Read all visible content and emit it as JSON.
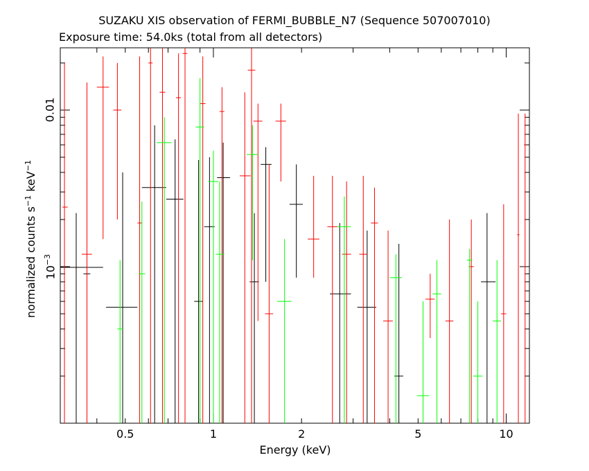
{
  "chart_data": {
    "type": "scatter",
    "title": "SUZAKU XIS observation of FERMI_BUBBLE_N7 (Sequence 507007010)",
    "subtitle": "Exposure time: 54.0ks (total from all detectors)",
    "xlabel": "Energy (keV)",
    "ylabel_main": "normalized counts s",
    "ylabel_exp1": "−1",
    "ylabel_mid": " keV",
    "ylabel_exp2": "−1",
    "x_scale": "log",
    "y_scale": "log",
    "xlim": [
      0.3,
      12.0
    ],
    "ylim": [
      0.0001,
      0.025
    ],
    "grid": false,
    "x_tick_labels": [
      {
        "value": 0.5,
        "label": "0.5"
      },
      {
        "value": 1,
        "label": "1"
      },
      {
        "value": 2,
        "label": "2"
      },
      {
        "value": 5,
        "label": "5"
      },
      {
        "value": 10,
        "label": "10"
      }
    ],
    "y_tick_labels": [
      {
        "value": 0.001,
        "base": "10",
        "exp": "−3"
      },
      {
        "value": 0.01,
        "base": "0.01",
        "exp": ""
      }
    ],
    "series": [
      {
        "color": "#000000",
        "points": [
          {
            "x": 0.34,
            "xlo": 0.3,
            "xhi": 0.42,
            "y": 0.00099,
            "ylo": 0.0001,
            "yhi": 0.0022
          },
          {
            "x": 0.37,
            "xlo": 0.36,
            "xhi": 0.38,
            "y": 0.0009,
            "ylo": 0.0001,
            "yhi": 0.0035
          },
          {
            "x": 0.49,
            "xlo": 0.43,
            "xhi": 0.55,
            "y": 0.00055,
            "ylo": 0.0001,
            "yhi": 0.004
          },
          {
            "x": 0.63,
            "xlo": 0.57,
            "xhi": 0.69,
            "y": 0.0032,
            "ylo": 0.0001,
            "yhi": 0.008
          },
          {
            "x": 0.74,
            "xlo": 0.69,
            "xhi": 0.79,
            "y": 0.0027,
            "ylo": 0.0001,
            "yhi": 0.0065
          },
          {
            "x": 0.89,
            "xlo": 0.86,
            "xhi": 0.92,
            "y": 0.0006,
            "ylo": 0.0001,
            "yhi": 0.0048
          },
          {
            "x": 0.97,
            "xlo": 0.93,
            "xhi": 1.01,
            "y": 0.0018,
            "ylo": 0.0001,
            "yhi": 0.005
          },
          {
            "x": 1.08,
            "xlo": 1.03,
            "xhi": 1.14,
            "y": 0.0037,
            "ylo": 0.0001,
            "yhi": 0.0062
          },
          {
            "x": 1.38,
            "xlo": 1.33,
            "xhi": 1.43,
            "y": 0.0008,
            "ylo": 0.0001,
            "yhi": 0.0022
          },
          {
            "x": 1.51,
            "xlo": 1.45,
            "xhi": 1.58,
            "y": 0.0045,
            "ylo": 0.0008,
            "yhi": 0.0058
          },
          {
            "x": 1.92,
            "xlo": 1.82,
            "xhi": 2.02,
            "y": 0.0025,
            "ylo": 0.00085,
            "yhi": 0.0045
          },
          {
            "x": 2.7,
            "xlo": 2.5,
            "xhi": 2.95,
            "y": 0.00067,
            "ylo": 0.0001,
            "yhi": 0.0019
          },
          {
            "x": 3.35,
            "xlo": 3.1,
            "xhi": 3.6,
            "y": 0.00055,
            "ylo": 0.0001,
            "yhi": 0.0017
          },
          {
            "x": 4.3,
            "xlo": 4.15,
            "xhi": 4.45,
            "y": 0.0002,
            "ylo": 0.0001,
            "yhi": 0.0014
          },
          {
            "x": 8.6,
            "xlo": 8.2,
            "xhi": 9.2,
            "y": 0.0008,
            "ylo": 0.0001,
            "yhi": 0.0022
          }
        ]
      },
      {
        "color": "#ff0000",
        "points": [
          {
            "x": 0.31,
            "xlo": 0.305,
            "xhi": 0.318,
            "y": 0.0024,
            "ylo": 0.0001,
            "yhi": 0.02
          },
          {
            "x": 0.37,
            "xlo": 0.355,
            "xhi": 0.385,
            "y": 0.0012,
            "ylo": 0.0001,
            "yhi": 0.015
          },
          {
            "x": 0.42,
            "xlo": 0.4,
            "xhi": 0.44,
            "y": 0.014,
            "ylo": 0.0015,
            "yhi": 0.022
          },
          {
            "x": 0.47,
            "xlo": 0.455,
            "xhi": 0.485,
            "y": 0.01,
            "ylo": 0.002,
            "yhi": 0.02
          },
          {
            "x": 0.56,
            "xlo": 0.55,
            "xhi": 0.57,
            "y": 0.0019,
            "ylo": 0.0001,
            "yhi": 0.022
          },
          {
            "x": 0.61,
            "xlo": 0.6,
            "xhi": 0.62,
            "y": 0.02,
            "ylo": 0.0001,
            "yhi": 0.025
          },
          {
            "x": 0.67,
            "xlo": 0.655,
            "xhi": 0.685,
            "y": 0.013,
            "ylo": 0.0001,
            "yhi": 0.025
          },
          {
            "x": 0.76,
            "xlo": 0.745,
            "xhi": 0.775,
            "y": 0.012,
            "ylo": 0.0001,
            "yhi": 0.023
          },
          {
            "x": 0.8,
            "xlo": 0.785,
            "xhi": 0.815,
            "y": 0.023,
            "ylo": 0.0001,
            "yhi": 0.025
          },
          {
            "x": 0.92,
            "xlo": 0.9,
            "xhi": 0.94,
            "y": 0.011,
            "ylo": 0.0001,
            "yhi": 0.022
          },
          {
            "x": 1.07,
            "xlo": 1.05,
            "xhi": 1.09,
            "y": 0.0098,
            "ylo": 0.0001,
            "yhi": 0.014
          },
          {
            "x": 1.28,
            "xlo": 1.23,
            "xhi": 1.34,
            "y": 0.0038,
            "ylo": 0.0001,
            "yhi": 0.013
          },
          {
            "x": 1.35,
            "xlo": 1.31,
            "xhi": 1.39,
            "y": 0.018,
            "ylo": 0.0001,
            "yhi": 0.025
          },
          {
            "x": 1.42,
            "xlo": 1.37,
            "xhi": 1.47,
            "y": 0.0085,
            "ylo": 0.00045,
            "yhi": 0.011
          },
          {
            "x": 1.55,
            "xlo": 1.5,
            "xhi": 1.6,
            "y": 0.0005,
            "ylo": 0.0001,
            "yhi": 0.0045
          },
          {
            "x": 1.7,
            "xlo": 1.63,
            "xhi": 1.77,
            "y": 0.0085,
            "ylo": 0.0035,
            "yhi": 0.011
          },
          {
            "x": 2.2,
            "xlo": 2.1,
            "xhi": 2.3,
            "y": 0.0015,
            "ylo": 0.00085,
            "yhi": 0.0038
          },
          {
            "x": 2.55,
            "xlo": 2.45,
            "xhi": 2.65,
            "y": 0.0018,
            "ylo": 0.0001,
            "yhi": 0.0038
          },
          {
            "x": 2.85,
            "xlo": 2.75,
            "xhi": 2.95,
            "y": 0.0012,
            "ylo": 0.0001,
            "yhi": 0.0035
          },
          {
            "x": 3.25,
            "xlo": 3.15,
            "xhi": 3.35,
            "y": 0.0012,
            "ylo": 0.0001,
            "yhi": 0.0038
          },
          {
            "x": 3.55,
            "xlo": 3.45,
            "xhi": 3.65,
            "y": 0.0019,
            "ylo": 0.0001,
            "yhi": 0.0032
          },
          {
            "x": 3.95,
            "xlo": 3.8,
            "xhi": 4.1,
            "y": 0.00045,
            "ylo": 0.0001,
            "yhi": 0.0017
          },
          {
            "x": 5.5,
            "xlo": 5.3,
            "xhi": 5.7,
            "y": 0.00062,
            "ylo": 0.00035,
            "yhi": 0.0009
          },
          {
            "x": 6.4,
            "xlo": 6.2,
            "xhi": 6.6,
            "y": 0.00045,
            "ylo": 0.0001,
            "yhi": 0.002
          },
          {
            "x": 7.6,
            "xlo": 7.45,
            "xhi": 7.75,
            "y": 0.001,
            "ylo": 0.0001,
            "yhi": 0.002
          },
          {
            "x": 9.8,
            "xlo": 9.6,
            "xhi": 10.0,
            "y": 0.0005,
            "ylo": 0.0001,
            "yhi": 0.0025
          },
          {
            "x": 11.0,
            "xlo": 10.9,
            "xhi": 11.1,
            "y": 0.0016,
            "ylo": 0.0001,
            "yhi": 0.0095
          },
          {
            "x": 11.6,
            "xlo": 11.5,
            "xhi": 11.7,
            "y": 0.006,
            "ylo": 0.0001,
            "yhi": 0.0095
          }
        ]
      },
      {
        "color": "#00ff00",
        "points": [
          {
            "x": 0.48,
            "xlo": 0.47,
            "xhi": 0.49,
            "y": 0.0004,
            "ylo": 0.0001,
            "yhi": 0.0011
          },
          {
            "x": 0.57,
            "xlo": 0.555,
            "xhi": 0.585,
            "y": 0.0009,
            "ylo": 0.0001,
            "yhi": 0.0026
          },
          {
            "x": 0.68,
            "xlo": 0.64,
            "xhi": 0.72,
            "y": 0.0062,
            "ylo": 0.0001,
            "yhi": 0.009
          },
          {
            "x": 0.9,
            "xlo": 0.87,
            "xhi": 0.93,
            "y": 0.0078,
            "ylo": 0.0001,
            "yhi": 0.016
          },
          {
            "x": 1.0,
            "xlo": 0.96,
            "xhi": 1.04,
            "y": 0.0035,
            "ylo": 0.0001,
            "yhi": 0.0055
          },
          {
            "x": 1.05,
            "xlo": 1.02,
            "xhi": 1.09,
            "y": 0.0012,
            "ylo": 0.0001,
            "yhi": 0.0035
          },
          {
            "x": 1.36,
            "xlo": 1.3,
            "xhi": 1.42,
            "y": 0.0052,
            "ylo": 0.0011,
            "yhi": 0.008
          },
          {
            "x": 1.75,
            "xlo": 1.65,
            "xhi": 1.85,
            "y": 0.0006,
            "ylo": 0.0001,
            "yhi": 0.0015
          },
          {
            "x": 2.8,
            "xlo": 2.65,
            "xhi": 2.95,
            "y": 0.0018,
            "ylo": 0.0001,
            "yhi": 0.0028
          },
          {
            "x": 4.2,
            "xlo": 4.0,
            "xhi": 4.4,
            "y": 0.00085,
            "ylo": 0.0001,
            "yhi": 0.0012
          },
          {
            "x": 5.2,
            "xlo": 4.95,
            "xhi": 5.45,
            "y": 0.00015,
            "ylo": 0.0001,
            "yhi": 0.0006
          },
          {
            "x": 5.8,
            "xlo": 5.6,
            "xhi": 6.0,
            "y": 0.00067,
            "ylo": 0.0001,
            "yhi": 0.0011
          },
          {
            "x": 7.5,
            "xlo": 7.35,
            "xhi": 7.65,
            "y": 0.0011,
            "ylo": 0.0001,
            "yhi": 0.0013
          },
          {
            "x": 8.0,
            "xlo": 7.7,
            "xhi": 8.3,
            "y": 0.0002,
            "ylo": 0.0001,
            "yhi": 0.0006
          },
          {
            "x": 9.3,
            "xlo": 9.0,
            "xhi": 9.6,
            "y": 0.00045,
            "ylo": 0.0001,
            "yhi": 0.0011
          }
        ]
      }
    ]
  }
}
